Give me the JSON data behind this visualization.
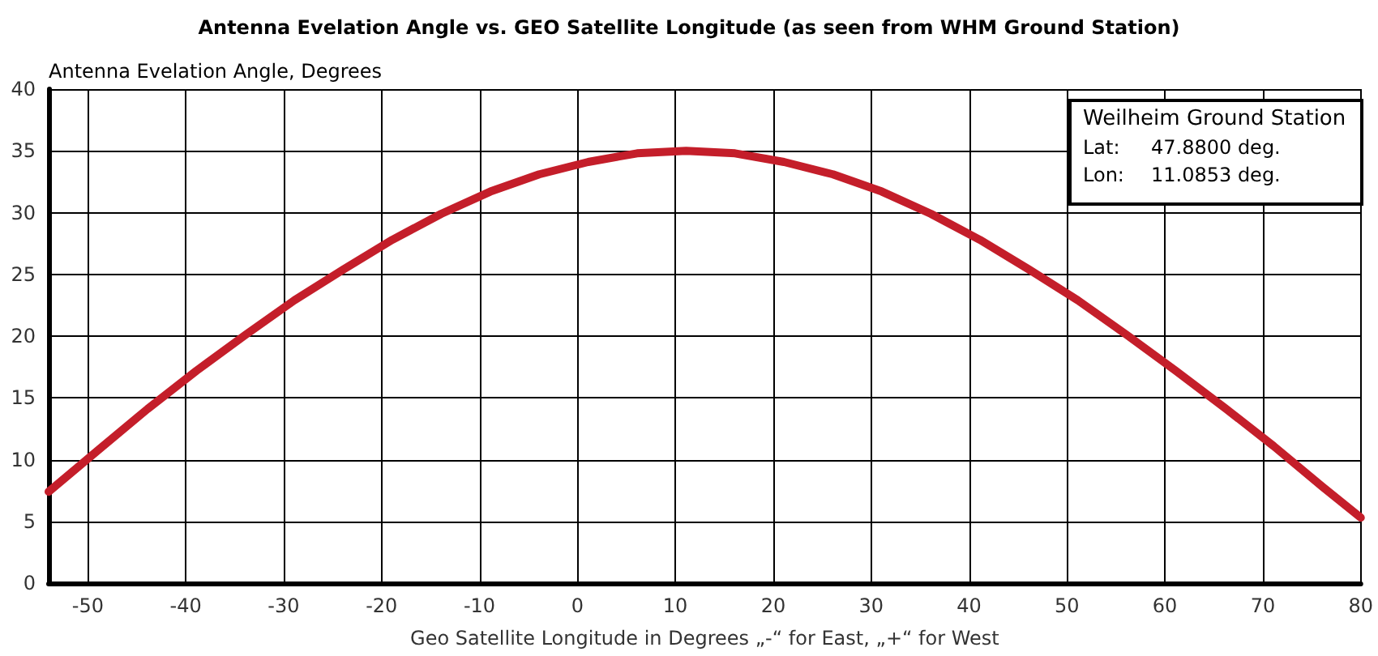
{
  "chart_data": {
    "type": "line",
    "title": "Antenna Evelation Angle vs. GEO Satellite Longitude (as seen from WHM Ground Station)",
    "xlabel": "Geo Satellite Longitude in Degrees „-“ for East, „+“ for West",
    "ylabel": "Antenna Evelation Angle, Degrees",
    "annotations": [
      "Weilheim Ground Station",
      "Lat: 47.8800 deg.",
      "Lon: 11.0853 deg."
    ],
    "series": [
      {
        "color": "#c41e2a",
        "x": [
          -54,
          -48.9,
          -43.9,
          -38.9,
          -33.9,
          -28.9,
          -23.9,
          -18.9,
          -13.9,
          -8.9,
          -3.9,
          1.1,
          6.1,
          11.1,
          16.1,
          21.1,
          26.1,
          31.1,
          36.1,
          41.1,
          46.1,
          51.1,
          56.1,
          61.1,
          66.1,
          71.1,
          76.1,
          80
        ],
        "values": [
          7.4,
          10.8,
          14.1,
          17.2,
          20.1,
          22.9,
          25.4,
          27.8,
          29.9,
          31.7,
          33.1,
          34.1,
          34.8,
          35.0,
          34.8,
          34.1,
          33.1,
          31.7,
          29.9,
          27.8,
          25.4,
          22.9,
          20.1,
          17.2,
          14.2,
          11.1,
          7.8,
          5.3
        ]
      }
    ],
    "xlim": [
      -54,
      80
    ],
    "xticks": [
      -50,
      -40,
      -30,
      -20,
      -10,
      0,
      10,
      20,
      30,
      40,
      50,
      60,
      70,
      80
    ],
    "ylim": [
      0,
      40
    ],
    "yticks": [
      0,
      5,
      10,
      15,
      20,
      25,
      30,
      35,
      40
    ],
    "grid": true,
    "marker": "none",
    "line_style": "solid"
  }
}
